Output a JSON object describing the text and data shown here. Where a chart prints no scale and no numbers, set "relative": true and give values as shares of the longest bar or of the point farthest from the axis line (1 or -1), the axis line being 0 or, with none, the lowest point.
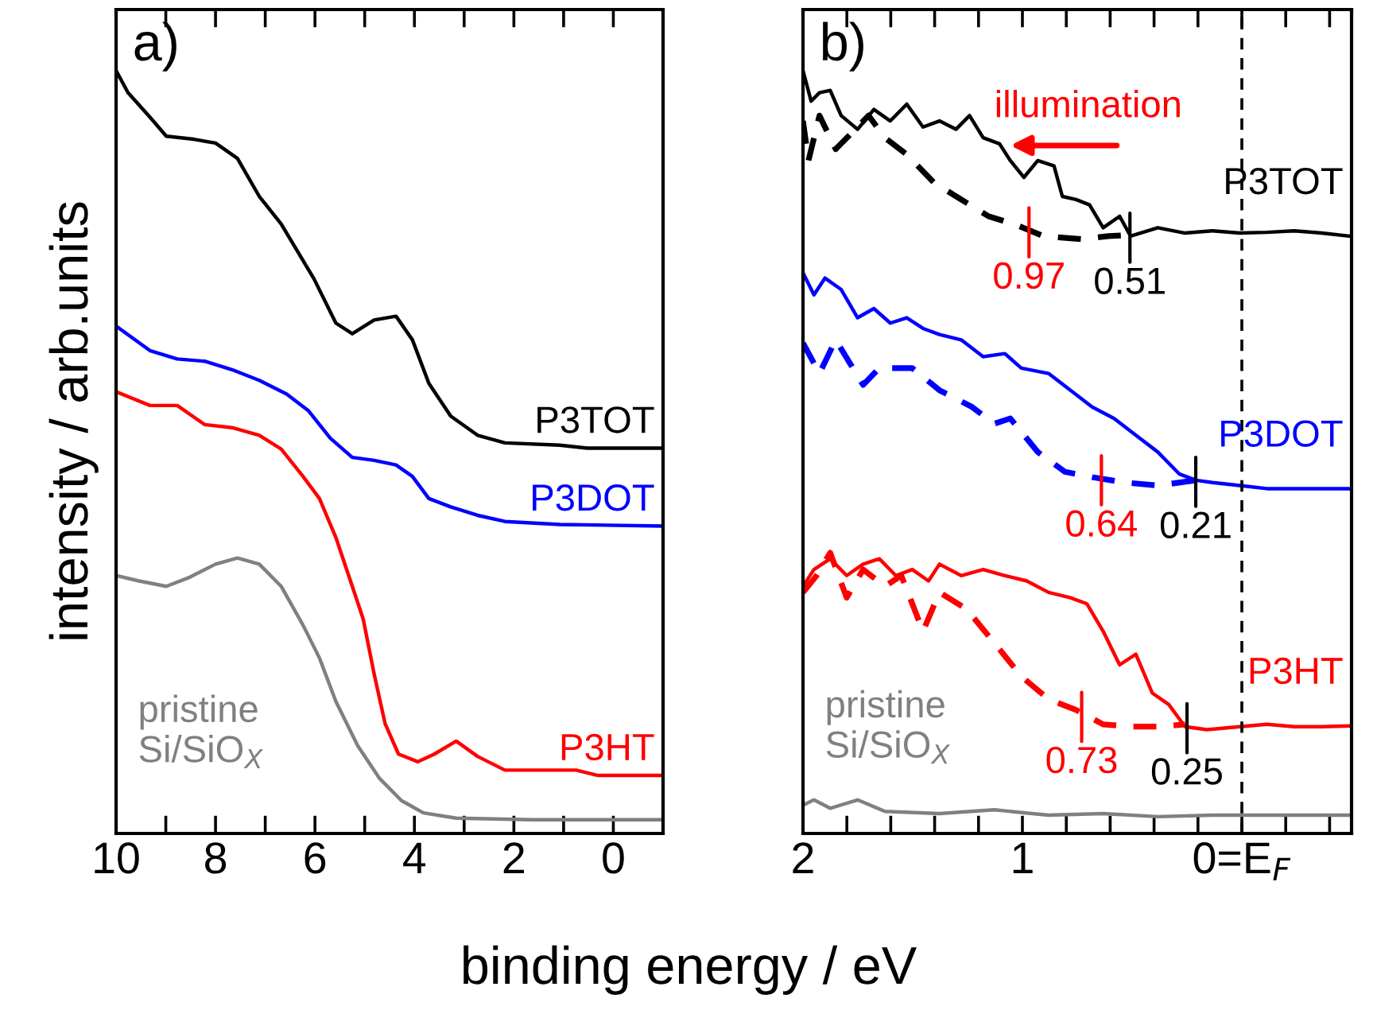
{
  "chart_data": [
    {
      "type": "line",
      "relative": true,
      "xlabel": "binding energy / eV",
      "ylabel": "intensity / arb.units",
      "xlim": [
        10,
        -1
      ],
      "xticks": [
        10,
        {
          "value": 9,
          "label": null
        },
        8,
        {
          "value": 7,
          "label": null
        },
        6,
        {
          "value": 5,
          "label": null
        },
        4,
        {
          "value": 3,
          "label": null
        },
        2,
        {
          "value": 1,
          "label": null
        },
        0
      ],
      "tick_labels": "x",
      "grid": false,
      "legend": false,
      "marker": "none",
      "line_style": "solid",
      "annotations": [
        "a)"
      ],
      "series": [
        {
          "name": "P3TOT",
          "color": "#000000",
          "x": [
            10,
            9.76,
            9.32,
            8.99,
            8.44,
            8.0,
            7.56,
            7.12,
            6.68,
            6.02,
            5.58,
            5.25,
            4.81,
            4.37,
            4.04,
            3.71,
            3.27,
            2.73,
            2.18,
            1.08,
            0.53,
            -1
          ],
          "values": [
            1.0,
            0.971,
            0.939,
            0.914,
            0.91,
            0.905,
            0.885,
            0.835,
            0.799,
            0.727,
            0.669,
            0.655,
            0.673,
            0.678,
            0.647,
            0.59,
            0.547,
            0.522,
            0.512,
            0.509,
            0.505,
            0.505
          ]
        },
        {
          "name": "P3DOT",
          "color": "#0000ff",
          "x": [
            10,
            9.32,
            8.77,
            8.22,
            7.67,
            7.12,
            6.57,
            6.13,
            5.69,
            5.25,
            4.81,
            4.37,
            4.04,
            3.71,
            3.27,
            2.73,
            2.18,
            1.08,
            -1
          ],
          "values": [
            0.665,
            0.633,
            0.622,
            0.619,
            0.608,
            0.594,
            0.576,
            0.554,
            0.518,
            0.493,
            0.489,
            0.483,
            0.468,
            0.439,
            0.428,
            0.417,
            0.409,
            0.405,
            0.403
          ]
        },
        {
          "name": "P3HT",
          "color": "#ff0000",
          "x": [
            10,
            9.32,
            8.77,
            8.22,
            7.67,
            7.12,
            6.68,
            6.24,
            5.91,
            5.58,
            5.25,
            5.03,
            4.81,
            4.59,
            4.32,
            3.93,
            3.6,
            3.16,
            2.73,
            2.18,
            0.75,
            0.31,
            -1
          ],
          "values": [
            0.579,
            0.561,
            0.561,
            0.536,
            0.532,
            0.522,
            0.504,
            0.468,
            0.439,
            0.388,
            0.324,
            0.281,
            0.209,
            0.144,
            0.104,
            0.094,
            0.104,
            0.121,
            0.101,
            0.083,
            0.083,
            0.076,
            0.076
          ]
        },
        {
          "name": "pristine\nSi/SiO$_{X}$",
          "color": "#808080",
          "x": [
            10,
            9.54,
            8.99,
            8.55,
            8.0,
            7.56,
            7.12,
            6.68,
            6.24,
            5.91,
            5.58,
            5.14,
            4.7,
            4.26,
            3.82,
            3.16,
            1.63,
            -1
          ],
          "values": [
            0.338,
            0.331,
            0.324,
            0.335,
            0.353,
            0.361,
            0.353,
            0.324,
            0.273,
            0.23,
            0.173,
            0.115,
            0.072,
            0.043,
            0.027,
            0.02,
            0.018,
            0.018
          ]
        }
      ]
    },
    {
      "type": "line",
      "relative": true,
      "xlim": [
        2,
        -0.5
      ],
      "xticks": [
        2,
        {
          "value": 1.8,
          "label": null
        },
        {
          "value": 1.6,
          "label": null
        },
        {
          "value": 1.4,
          "label": null
        },
        {
          "value": 1.2,
          "label": null
        },
        1,
        {
          "value": 0.8,
          "label": null
        },
        {
          "value": 0.6,
          "label": null
        },
        {
          "value": 0.4,
          "label": null
        },
        {
          "value": 0.2,
          "label": null
        },
        {
          "value": 0,
          "label": "0=E$_{F}$"
        },
        {
          "value": -0.2,
          "label": null
        },
        {
          "value": -0.4,
          "label": null
        }
      ],
      "tick_labels": "x",
      "grid": false,
      "legend": false,
      "marker": "none",
      "ref_lines": [
        {
          "axis": "x",
          "value": 0,
          "label": null,
          "color": "#000000",
          "line_style": "dashed"
        }
      ],
      "annotations": [
        "b)",
        "illumination",
        {
          "text": "0.97",
          "x": 0.97,
          "y": 0.79
        },
        {
          "text": "0.51",
          "x": 0.51,
          "y": 0.783
        },
        {
          "text": "0.64",
          "x": 0.64,
          "y": 0.465
        },
        {
          "text": "0.21",
          "x": 0.21,
          "y": 0.463
        },
        {
          "text": "0.73",
          "x": 0.73,
          "y": 0.155
        },
        {
          "text": "0.25",
          "x": 0.25,
          "y": 0.14
        }
      ],
      "series": [
        {
          "name": "P3TOT",
          "color": "#000000",
          "line_style": "solid",
          "x": [
            2,
            1.963,
            1.925,
            1.876,
            1.826,
            1.751,
            1.677,
            1.602,
            1.527,
            1.453,
            1.378,
            1.303,
            1.241,
            1.179,
            1.104,
            1.055,
            0.993,
            0.93,
            0.856,
            0.818,
            0.756,
            0.694,
            0.632,
            0.557,
            0.507,
            0.383,
            0.259,
            0.134,
            0.01,
            -0.114,
            -0.239,
            -0.363,
            -0.49
          ],
          "values": [
            1.0,
            0.96,
            0.971,
            0.974,
            0.941,
            0.923,
            0.949,
            0.934,
            0.956,
            0.926,
            0.934,
            0.923,
            0.941,
            0.912,
            0.904,
            0.882,
            0.86,
            0.882,
            0.875,
            0.835,
            0.831,
            0.824,
            0.794,
            0.809,
            0.783,
            0.794,
            0.787,
            0.79,
            0.787,
            0.788,
            0.79,
            0.787,
            0.783
          ]
        },
        {
          "color": "#000000",
          "line_style": "dashed",
          "x": [
            2,
            1.975,
            1.925,
            1.851,
            1.776,
            1.701,
            1.627,
            1.527,
            1.403,
            1.279,
            1.154,
            1.03,
            0.905,
            0.731,
            0.607,
            0.483
          ],
          "values": [
            0.934,
            0.882,
            0.941,
            0.897,
            0.919,
            0.941,
            0.912,
            0.89,
            0.853,
            0.831,
            0.809,
            0.798,
            0.783,
            0.779,
            0.783,
            0.785
          ]
        },
        {
          "name": "P3DOT",
          "color": "#0000ff",
          "line_style": "solid",
          "x": [
            2,
            1.95,
            1.9,
            1.826,
            1.751,
            1.677,
            1.602,
            1.527,
            1.453,
            1.378,
            1.279,
            1.179,
            1.08,
            1.005,
            0.881,
            0.781,
            0.682,
            0.582,
            0.483,
            0.383,
            0.284,
            0.209,
            0.134,
            0.01,
            -0.114,
            -0.363,
            -0.49
          ],
          "values": [
            0.735,
            0.706,
            0.728,
            0.713,
            0.676,
            0.688,
            0.669,
            0.676,
            0.662,
            0.654,
            0.647,
            0.625,
            0.629,
            0.61,
            0.603,
            0.581,
            0.559,
            0.544,
            0.522,
            0.5,
            0.471,
            0.463,
            0.46,
            0.456,
            0.452,
            0.452,
            0.452
          ]
        },
        {
          "color": "#0000ff",
          "line_style": "dashed",
          "x": [
            2,
            1.925,
            1.851,
            1.726,
            1.652,
            1.502,
            1.378,
            1.229,
            1.129,
            1.055,
            0.93,
            0.806,
            0.682,
            0.532,
            0.383,
            0.209
          ],
          "values": [
            0.643,
            0.603,
            0.647,
            0.588,
            0.61,
            0.61,
            0.581,
            0.559,
            0.537,
            0.544,
            0.5,
            0.474,
            0.467,
            0.46,
            0.456,
            0.463
          ]
        },
        {
          "name": "P3HT",
          "color": "#ff0000",
          "line_style": "solid",
          "x": [
            2,
            1.95,
            1.876,
            1.801,
            1.726,
            1.652,
            1.577,
            1.502,
            1.428,
            1.378,
            1.279,
            1.179,
            1.08,
            0.98,
            0.881,
            0.781,
            0.706,
            0.632,
            0.557,
            0.483,
            0.408,
            0.333,
            0.259,
            0.159,
            0.01,
            -0.114,
            -0.239,
            -0.363,
            -0.49
          ],
          "values": [
            0.324,
            0.346,
            0.36,
            0.338,
            0.353,
            0.36,
            0.338,
            0.346,
            0.331,
            0.353,
            0.338,
            0.346,
            0.338,
            0.331,
            0.316,
            0.309,
            0.301,
            0.265,
            0.221,
            0.235,
            0.184,
            0.169,
            0.14,
            0.136,
            0.14,
            0.143,
            0.14,
            0.14,
            0.141
          ]
        },
        {
          "color": "#ff0000",
          "line_style": "dashed",
          "x": [
            2,
            1.938,
            1.876,
            1.801,
            1.726,
            1.627,
            1.552,
            1.453,
            1.378,
            1.254,
            1.129,
            1.005,
            0.881,
            0.756,
            0.632,
            0.507,
            0.383,
            0.259
          ],
          "values": [
            0.316,
            0.338,
            0.368,
            0.309,
            0.346,
            0.324,
            0.338,
            0.265,
            0.316,
            0.294,
            0.25,
            0.206,
            0.176,
            0.162,
            0.143,
            0.14,
            0.14,
            0.143
          ]
        },
        {
          "name": "pristine\nSi/SiO$_{X}$",
          "color": "#808080",
          "line_style": "solid",
          "x": [
            2,
            1.95,
            1.876,
            1.751,
            1.627,
            1.378,
            1.129,
            0.881,
            0.632,
            0.383,
            0.134,
            -0.114,
            -0.49
          ],
          "values": [
            0.037,
            0.044,
            0.033,
            0.044,
            0.029,
            0.026,
            0.031,
            0.024,
            0.026,
            0.022,
            0.024,
            0.024,
            0.024
          ]
        }
      ]
    }
  ]
}
